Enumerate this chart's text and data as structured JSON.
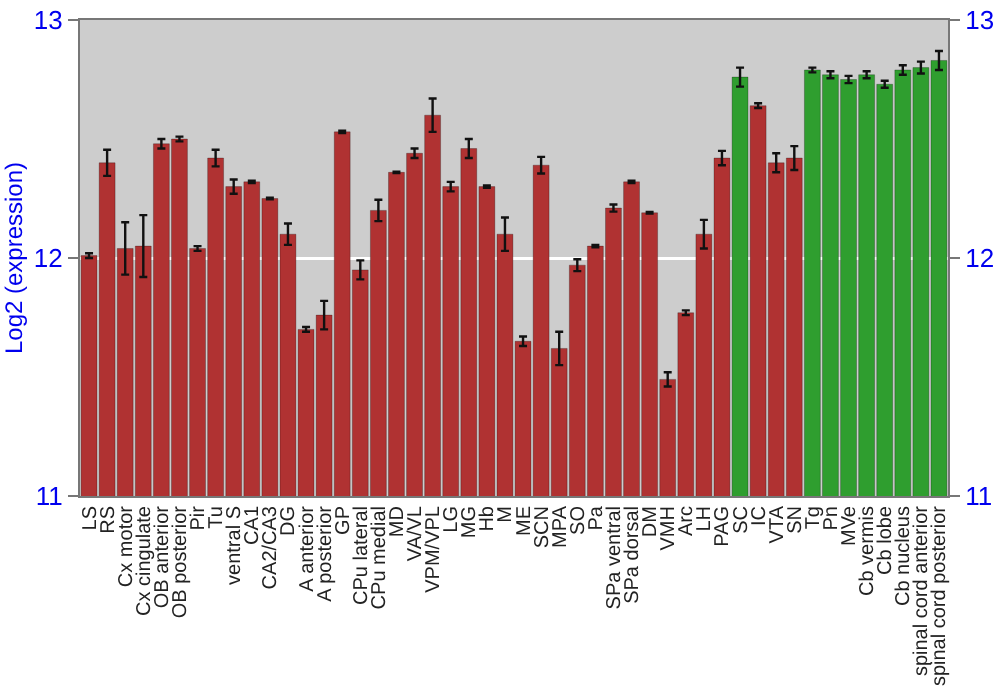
{
  "chart_data": {
    "type": "bar",
    "ylabel": "Log2 (expression)",
    "categories": [
      "LS",
      "RS",
      "Cx motor",
      "Cx cingulate",
      "OB anterior",
      "OB posterior",
      "Pir",
      "Tu",
      "ventral S",
      "CA1",
      "CA2/CA3",
      "DG",
      "A anterior",
      "A posterior",
      "GP",
      "CPu lateral",
      "CPu medial",
      "MD",
      "VA/VL",
      "VPM/VPL",
      "LG",
      "MG",
      "Hb",
      "M",
      "ME",
      "SCN",
      "MPA",
      "SO",
      "Pa",
      "SPa ventral",
      "SPa dorsal",
      "DM",
      "VMH",
      "Arc",
      "LH",
      "PAG",
      "SC",
      "IC",
      "VTA",
      "SN",
      "Tg",
      "Pn",
      "MVe",
      "Cb vermis",
      "Cb lobe",
      "Cb nucleus",
      "spinal cord anterior",
      "spinal cord posterior"
    ],
    "values": [
      12.01,
      12.4,
      12.04,
      12.05,
      12.48,
      12.5,
      12.04,
      12.42,
      12.3,
      12.32,
      12.25,
      12.1,
      11.7,
      11.76,
      12.53,
      11.95,
      12.2,
      12.36,
      12.44,
      12.6,
      12.3,
      12.46,
      12.3,
      12.1,
      11.65,
      12.39,
      11.62,
      11.97,
      12.05,
      12.21,
      12.32,
      12.19,
      11.49,
      11.77,
      12.1,
      12.42,
      12.76,
      12.64,
      12.4,
      12.42,
      12.79,
      12.77,
      12.75,
      12.77,
      12.73,
      12.79,
      12.8,
      12.83
    ],
    "errors": [
      0.01,
      0.055,
      0.11,
      0.13,
      0.02,
      0.01,
      0.01,
      0.035,
      0.03,
      0.005,
      0.003,
      0.045,
      0.01,
      0.06,
      0.005,
      0.04,
      0.045,
      0.003,
      0.02,
      0.07,
      0.02,
      0.04,
      0.005,
      0.07,
      0.02,
      0.035,
      0.07,
      0.025,
      0.005,
      0.015,
      0.005,
      0.003,
      0.03,
      0.01,
      0.06,
      0.03,
      0.04,
      0.01,
      0.04,
      0.05,
      0.01,
      0.015,
      0.015,
      0.015,
      0.015,
      0.02,
      0.025,
      0.04
    ],
    "colors": [
      "#b03232",
      "#b03232",
      "#b03232",
      "#b03232",
      "#b03232",
      "#b03232",
      "#b03232",
      "#b03232",
      "#b03232",
      "#b03232",
      "#b03232",
      "#b03232",
      "#b03232",
      "#b03232",
      "#b03232",
      "#b03232",
      "#b03232",
      "#b03232",
      "#b03232",
      "#b03232",
      "#b03232",
      "#b03232",
      "#b03232",
      "#b03232",
      "#b03232",
      "#b03232",
      "#b03232",
      "#b03232",
      "#b03232",
      "#b03232",
      "#b03232",
      "#b03232",
      "#b03232",
      "#b03232",
      "#b03232",
      "#b03232",
      "#2f9e2f",
      "#b03232",
      "#b03232",
      "#b03232",
      "#2f9e2f",
      "#2f9e2f",
      "#2f9e2f",
      "#2f9e2f",
      "#2f9e2f",
      "#2f9e2f",
      "#2f9e2f",
      "#2f9e2f"
    ],
    "ylim": [
      11,
      13
    ],
    "yticks": [
      11,
      12,
      13
    ],
    "y2lim": [
      11,
      13
    ],
    "y2ticks": [
      11,
      12,
      13
    ],
    "grid": "y"
  }
}
